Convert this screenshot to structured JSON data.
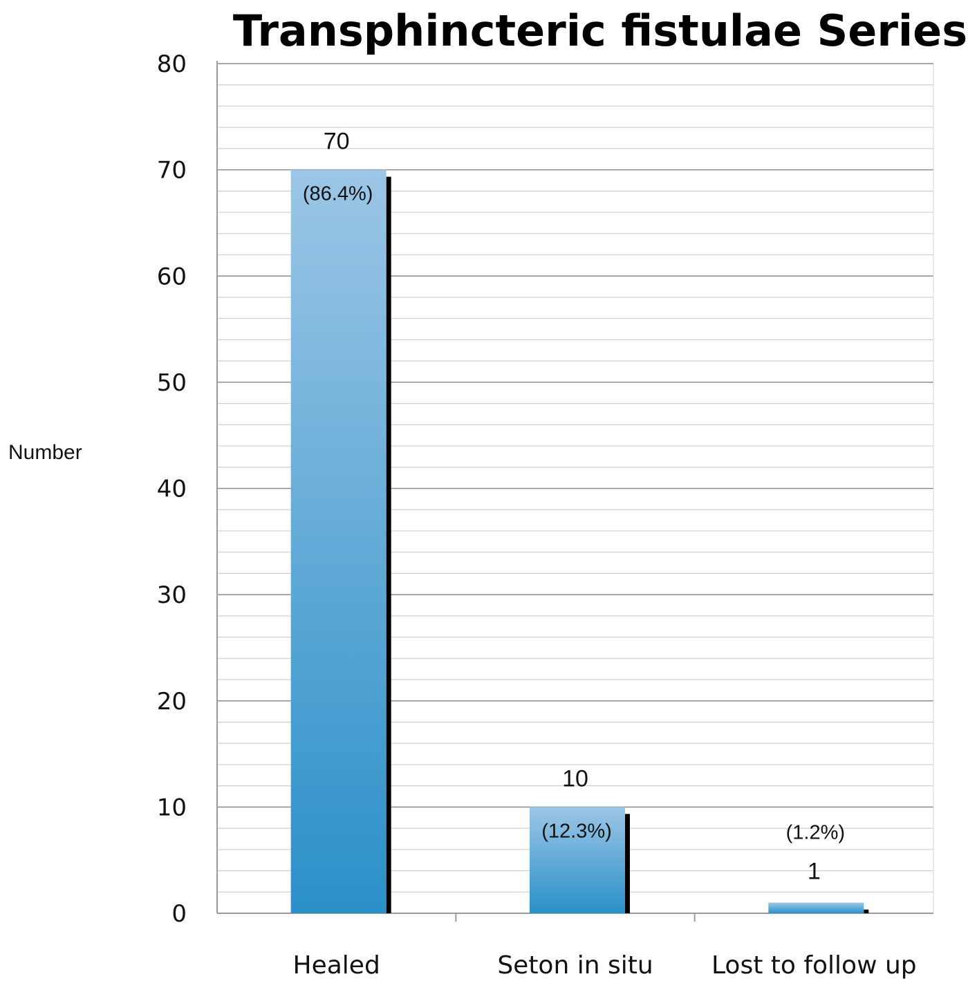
{
  "chart_data": {
    "type": "bar",
    "title": "Transphincteric fistulae Series",
    "xlabel": "",
    "ylabel": "Number",
    "categories": [
      "Healed",
      "Seton in situ",
      "Lost to follow up"
    ],
    "values": [
      70,
      10,
      1
    ],
    "value_labels": [
      "70",
      "10",
      "1"
    ],
    "percent_labels": [
      "(86.4%)",
      "(12.3%)",
      "(1.2%)"
    ],
    "ylim": [
      0,
      80
    ],
    "y_ticks": [
      0,
      10,
      20,
      30,
      40,
      50,
      60,
      70,
      80
    ],
    "major_grid": true,
    "minor_grid": true,
    "legend": "none",
    "colors": {
      "bar_top": "#9cc6e6",
      "bar_bottom": "#2a90c8",
      "bar_shadow": "#000000",
      "major_grid": "#8c8c8c",
      "minor_grid": "#cfcfcf",
      "axis": "#9a9a9a"
    }
  }
}
